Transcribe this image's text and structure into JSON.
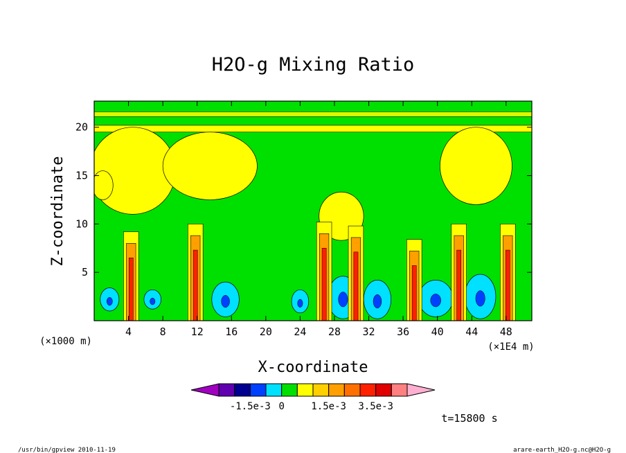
{
  "chart_data": {
    "type": "heatmap",
    "title": "H2O-g Mixing Ratio",
    "xlabel": "X-coordinate",
    "ylabel": "Z-coordinate",
    "x_unit_left": "(×1000 m)",
    "x_unit_right": "(×1E4 m)",
    "xlim": [
      0,
      51
    ],
    "ylim": [
      0,
      22.7
    ],
    "xticks": [
      4,
      8,
      12,
      16,
      20,
      24,
      28,
      32,
      36,
      40,
      44,
      48
    ],
    "yticks": [
      5,
      10,
      15,
      20
    ],
    "colorbar": {
      "colors": [
        "#a000c0",
        "#6000b0",
        "#000090",
        "#0040ff",
        "#00e0ff",
        "#00e000",
        "#ffff00",
        "#ffd000",
        "#ffa000",
        "#ff7000",
        "#ff2000",
        "#e00000",
        "#ff8080",
        "#ffb0d0"
      ],
      "labels": [
        "-1.5e-3",
        "0",
        "1.5e-3",
        "3.5e-3"
      ]
    },
    "time_label": "t=15800 s",
    "plumes": [
      {
        "x": 4.3,
        "top": 8.0
      },
      {
        "x": 11.8,
        "top": 8.8
      },
      {
        "x": 26.8,
        "top": 9.0
      },
      {
        "x": 30.5,
        "top": 8.6
      },
      {
        "x": 37.3,
        "top": 7.2
      },
      {
        "x": 42.5,
        "top": 8.8
      },
      {
        "x": 48.2,
        "top": 8.8
      }
    ],
    "negative_blobs": [
      {
        "x": 1.8,
        "z": 2.2,
        "rx": 1.1,
        "rz": 1.2
      },
      {
        "x": 6.8,
        "z": 2.2,
        "rx": 1.0,
        "rz": 1.0
      },
      {
        "x": 15.3,
        "z": 2.2,
        "rx": 1.6,
        "rz": 1.8
      },
      {
        "x": 24.0,
        "z": 2.0,
        "rx": 1.0,
        "rz": 1.2
      },
      {
        "x": 29.0,
        "z": 2.4,
        "rx": 1.8,
        "rz": 2.2
      },
      {
        "x": 33.0,
        "z": 2.2,
        "rx": 1.6,
        "rz": 2.0
      },
      {
        "x": 39.8,
        "z": 2.3,
        "rx": 2.0,
        "rz": 1.9
      },
      {
        "x": 45.0,
        "z": 2.5,
        "rx": 1.8,
        "rz": 2.3
      }
    ]
  },
  "footer": {
    "left": "/usr/bin/gpview  2010-11-19",
    "right": "arare-earth_H2O-g.nc@H2O-g"
  }
}
